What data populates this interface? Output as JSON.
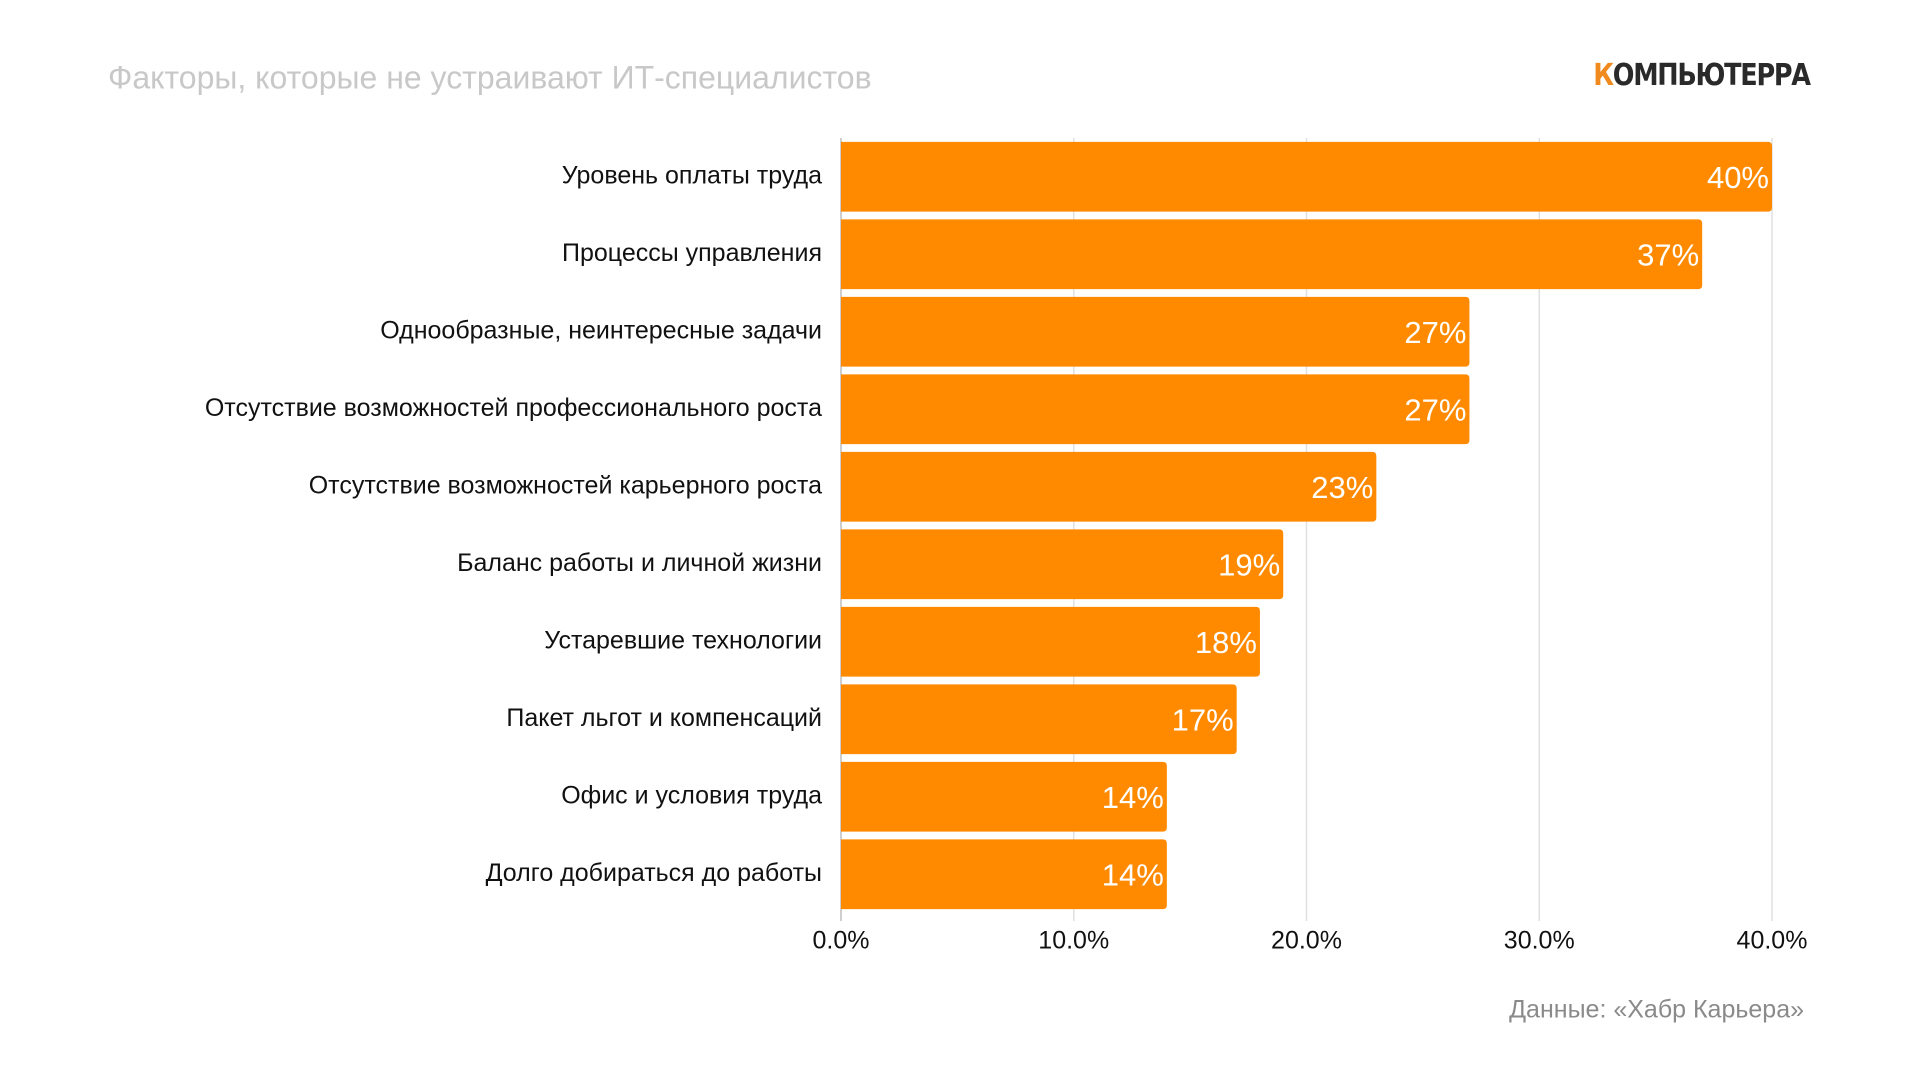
{
  "chart_data": {
    "type": "hbar",
    "title": "Факторы, которые не устраивают ИТ-специалистов",
    "logo": "КОМПЬЮТЕРРА",
    "source": "Данные: «Хабр Карьера»",
    "categories": [
      "Уровень оплаты труда",
      "Процессы управления",
      "Однообразные, неинтересные задачи",
      "Отсутствие возможностей профессионального роста",
      "Отсутствие возможностей карьерного роста",
      "Баланс работы и личной жизни",
      "Устаревшие технологии",
      "Пакет льгот и компенсаций",
      "Офис и условия труда",
      "Долго добираться до работы"
    ],
    "values": [
      40,
      37,
      27,
      27,
      23,
      19,
      18,
      17,
      14,
      14
    ],
    "value_labels": [
      "40%",
      "37%",
      "27%",
      "27%",
      "23%",
      "19%",
      "18%",
      "17%",
      "14%",
      "14%"
    ],
    "color": "#ff8a00",
    "xlim": [
      0,
      40
    ],
    "xticks": [
      {
        "value": 0,
        "label": "0.0%"
      },
      {
        "value": 10,
        "label": "10.0%"
      },
      {
        "value": 20,
        "label": "20.0%"
      },
      {
        "value": 30,
        "label": "30.0%"
      },
      {
        "value": 40,
        "label": "40.0%"
      }
    ],
    "grid": true
  }
}
